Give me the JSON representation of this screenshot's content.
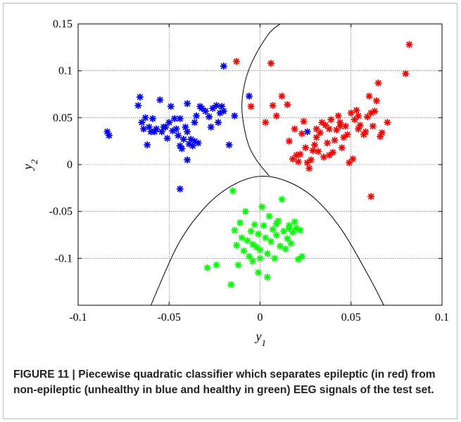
{
  "caption": {
    "label": "FIGURE 11 | ",
    "text": "Piecewise quadratic classifier which separates epileptic (in red) from non-epileptic (unhealthy in blue and healthy in green) EEG signals of the test set."
  },
  "chart_data": {
    "type": "scatter",
    "title": "",
    "xlabel": "y1",
    "ylabel": "y2",
    "xlim": [
      -0.1,
      0.1
    ],
    "ylim": [
      -0.15,
      0.15
    ],
    "xticks": [
      -0.1,
      -0.05,
      0,
      0.05,
      0.1
    ],
    "xtick_labels": [
      "-0.1",
      "-0.05",
      "0",
      "0.05",
      "0.1"
    ],
    "yticks": [
      -0.1,
      -0.05,
      0,
      0.05,
      0.1,
      0.15
    ],
    "ytick_labels": [
      "-0.1",
      "-0.05",
      "0",
      "0.05",
      "0.1",
      "0.15"
    ],
    "grid": true,
    "marker": "asterisk",
    "series": [
      {
        "color": "#0000ff",
        "points": [
          [
            -0.084,
            0.035
          ],
          [
            -0.083,
            0.031
          ],
          [
            -0.067,
            0.063
          ],
          [
            -0.066,
            0.072
          ],
          [
            -0.065,
            0.045
          ],
          [
            -0.064,
            0.038
          ],
          [
            -0.063,
            0.05
          ],
          [
            -0.062,
            0.021
          ],
          [
            -0.061,
            0.04
          ],
          [
            -0.06,
            0.035
          ],
          [
            -0.059,
            0.049
          ],
          [
            -0.058,
            0.035
          ],
          [
            -0.057,
            0.038
          ],
          [
            -0.055,
            0.069
          ],
          [
            -0.054,
            0.035
          ],
          [
            -0.053,
            0.04
          ],
          [
            -0.052,
            0.04
          ],
          [
            -0.051,
            0.028
          ],
          [
            -0.05,
            0.045
          ],
          [
            -0.049,
            0.062
          ],
          [
            -0.048,
            0.036
          ],
          [
            -0.047,
            0.049
          ],
          [
            -0.046,
            0.038
          ],
          [
            -0.045,
            0.031
          ],
          [
            -0.044,
            0.049
          ],
          [
            -0.044,
            0.02
          ],
          [
            -0.043,
            0.017
          ],
          [
            -0.042,
            0.027
          ],
          [
            -0.041,
            0.04
          ],
          [
            -0.04,
            0.035
          ],
          [
            -0.04,
            0.065
          ],
          [
            -0.039,
            0.022
          ],
          [
            -0.038,
            0.027
          ],
          [
            -0.037,
            0.02
          ],
          [
            -0.036,
            0.025
          ],
          [
            -0.036,
            0.045
          ],
          [
            -0.035,
            0.052
          ],
          [
            -0.034,
            0.023
          ],
          [
            -0.033,
            0.062
          ],
          [
            -0.032,
            0.06
          ],
          [
            -0.03,
            0.057
          ],
          [
            -0.028,
            0.051
          ],
          [
            -0.027,
            0.04
          ],
          [
            -0.026,
            0.06
          ],
          [
            -0.024,
            0.063
          ],
          [
            -0.023,
            0.045
          ],
          [
            -0.022,
            0.055
          ],
          [
            -0.021,
            0.062
          ],
          [
            -0.02,
            0.057
          ],
          [
            -0.02,
            0.105
          ],
          [
            -0.017,
            0.021
          ],
          [
            -0.04,
            0.005
          ],
          [
            -0.044,
            -0.026
          ],
          [
            -0.006,
            0.073
          ],
          [
            -0.014,
            0.052
          ],
          [
            0.026,
            0.035
          ]
        ]
      },
      {
        "color": "#ff0000",
        "points": [
          [
            -0.013,
            0.11
          ],
          [
            -0.005,
            0.062
          ],
          [
            0.003,
            0.045
          ],
          [
            0.006,
            0.108
          ],
          [
            0.007,
            0.063
          ],
          [
            0.009,
            0.052
          ],
          [
            0.012,
            0.073
          ],
          [
            0.015,
            0.064
          ],
          [
            0.016,
            0.025
          ],
          [
            0.018,
            0.006
          ],
          [
            0.019,
            0.038
          ],
          [
            0.02,
            0.01
          ],
          [
            0.021,
            0.003
          ],
          [
            0.022,
            0.011
          ],
          [
            0.023,
            0.033
          ],
          [
            0.024,
            0.046
          ],
          [
            0.025,
            0.018
          ],
          [
            0.026,
            0.002
          ],
          [
            0.027,
            -0.004
          ],
          [
            0.028,
            0.005
          ],
          [
            0.029,
            0.015
          ],
          [
            0.03,
            0.021
          ],
          [
            0.031,
            0.029
          ],
          [
            0.032,
            0.014
          ],
          [
            0.033,
            0.034
          ],
          [
            0.034,
            0.045
          ],
          [
            0.035,
            0.008
          ],
          [
            0.036,
            0.042
          ],
          [
            0.037,
            0.023
          ],
          [
            0.038,
            0.01
          ],
          [
            0.039,
            0.048
          ],
          [
            0.04,
            0.013
          ],
          [
            0.041,
            0.026
          ],
          [
            0.042,
            0.037
          ],
          [
            0.043,
            0.052
          ],
          [
            0.044,
            0.045
          ],
          [
            0.045,
            0.018
          ],
          [
            0.046,
            0.029
          ],
          [
            0.047,
            0.041
          ],
          [
            0.048,
            0.032
          ],
          [
            0.049,
            0.002
          ],
          [
            0.05,
            0.055
          ],
          [
            0.051,
            0.006
          ],
          [
            0.052,
            0.048
          ],
          [
            0.053,
            0.058
          ],
          [
            0.054,
            0.038
          ],
          [
            0.055,
            0.042
          ],
          [
            0.057,
            0.032
          ],
          [
            0.058,
            0.035
          ],
          [
            0.059,
            0.051
          ],
          [
            0.06,
            0.073
          ],
          [
            0.061,
            0.055
          ],
          [
            0.062,
            0.041
          ],
          [
            0.063,
            0.057
          ],
          [
            0.064,
            0.068
          ],
          [
            0.065,
            0.087
          ],
          [
            0.066,
            0.03
          ],
          [
            0.067,
            0.034
          ],
          [
            0.07,
            0.045
          ],
          [
            0.061,
            -0.034
          ],
          [
            0.08,
            0.097
          ],
          [
            0.082,
            0.128
          ],
          [
            0.044,
            0.041
          ],
          [
            0.038,
            0.038
          ],
          [
            0.031,
            0.038
          ],
          [
            0.054,
            0.052
          ]
        ]
      },
      {
        "color": "#00ff00",
        "points": [
          [
            -0.029,
            -0.11
          ],
          [
            -0.024,
            -0.107
          ],
          [
            -0.016,
            -0.128
          ],
          [
            -0.015,
            -0.028
          ],
          [
            -0.014,
            -0.07
          ],
          [
            -0.013,
            -0.086
          ],
          [
            -0.012,
            -0.107
          ],
          [
            -0.011,
            -0.062
          ],
          [
            -0.01,
            -0.078
          ],
          [
            -0.009,
            -0.092
          ],
          [
            -0.008,
            -0.05
          ],
          [
            -0.007,
            -0.081
          ],
          [
            -0.006,
            -0.098
          ],
          [
            -0.005,
            -0.071
          ],
          [
            -0.004,
            -0.085
          ],
          [
            -0.003,
            -0.064
          ],
          [
            -0.002,
            -0.088
          ],
          [
            -0.001,
            -0.074
          ],
          [
            0.0,
            -0.091
          ],
          [
            0.001,
            -0.045
          ],
          [
            0.002,
            -0.065
          ],
          [
            0.003,
            -0.078
          ],
          [
            0.004,
            -0.095
          ],
          [
            0.005,
            -0.055
          ],
          [
            0.006,
            -0.082
          ],
          [
            0.007,
            -0.069
          ],
          [
            0.008,
            -0.1
          ],
          [
            0.009,
            -0.075
          ],
          [
            0.01,
            -0.06
          ],
          [
            0.011,
            -0.087
          ],
          [
            0.012,
            -0.037
          ],
          [
            0.013,
            -0.071
          ],
          [
            0.014,
            -0.09
          ],
          [
            0.015,
            -0.079
          ],
          [
            0.016,
            -0.065
          ],
          [
            0.017,
            -0.084
          ],
          [
            0.018,
            -0.072
          ],
          [
            0.019,
            -0.061
          ],
          [
            0.02,
            -0.068
          ],
          [
            0.021,
            -0.101
          ],
          [
            0.022,
            -0.07
          ],
          [
            0.023,
            -0.098
          ],
          [
            -0.001,
            -0.115
          ],
          [
            0.004,
            -0.12
          ],
          [
            0.009,
            -0.063
          ],
          [
            0.0,
            -0.1
          ],
          [
            -0.004,
            -0.103
          ],
          [
            0.016,
            -0.068
          ]
        ]
      }
    ],
    "boundaries": [
      {
        "kind": "parabola-down",
        "vertex": [
          0.0,
          -0.0125
        ],
        "points": [
          [
            -0.06,
            -0.15
          ],
          [
            -0.045,
            -0.085
          ],
          [
            -0.03,
            -0.045
          ],
          [
            -0.015,
            -0.022
          ],
          [
            0.0,
            -0.0125
          ],
          [
            0.015,
            -0.018
          ],
          [
            0.03,
            -0.036
          ],
          [
            0.045,
            -0.07
          ],
          [
            0.06,
            -0.12
          ],
          [
            0.068,
            -0.15
          ]
        ]
      },
      {
        "kind": "parabola-side",
        "vertex": [
          -0.01,
          0.06
        ],
        "points": [
          [
            0.005,
            -0.012
          ],
          [
            -0.002,
            0.005
          ],
          [
            -0.007,
            0.025
          ],
          [
            -0.01,
            0.06
          ],
          [
            -0.008,
            0.09
          ],
          [
            -0.003,
            0.115
          ],
          [
            0.005,
            0.14
          ],
          [
            0.011,
            0.15
          ]
        ]
      }
    ]
  }
}
